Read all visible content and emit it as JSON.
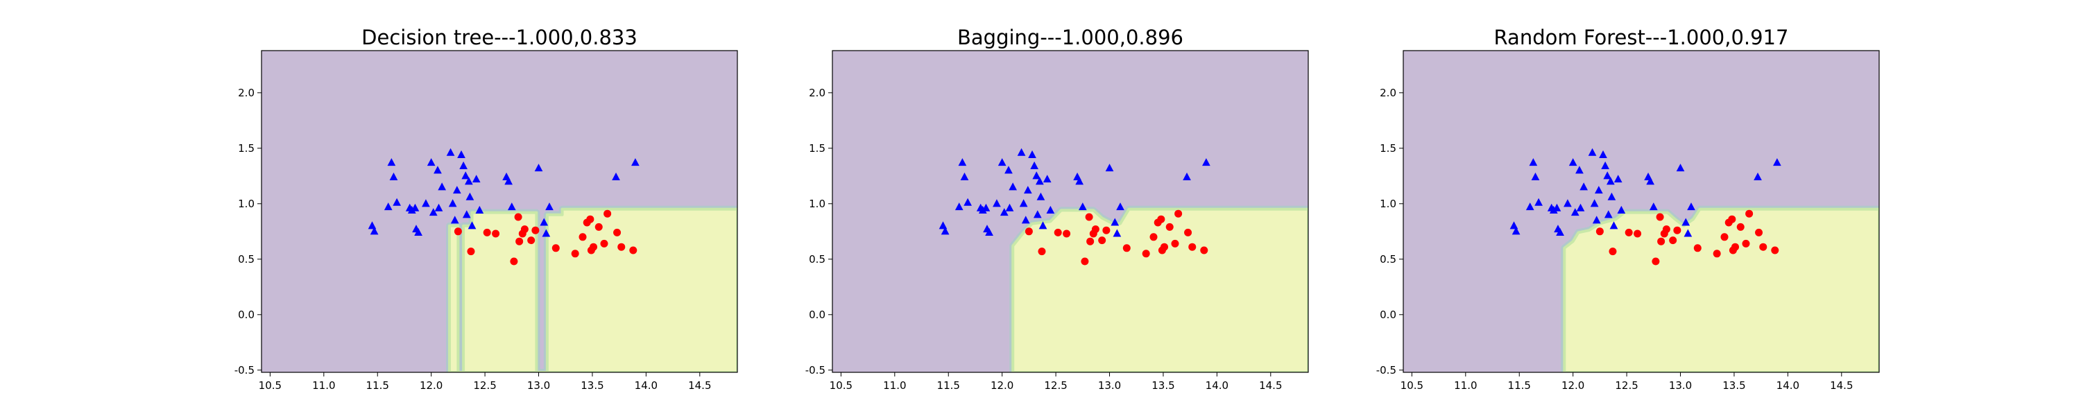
{
  "chart_data": [
    {
      "type": "scatter",
      "title": "Decision tree---1.000,0.833",
      "xlim": [
        10.42,
        14.85
      ],
      "ylim": [
        -0.52,
        2.38
      ],
      "xticks": [
        "10.5",
        "11.0",
        "11.5",
        "12.0",
        "12.5",
        "13.0",
        "13.5",
        "14.0",
        "14.5"
      ],
      "yticks": [
        "-0.5",
        "0.0",
        "0.5",
        "1.0",
        "1.5",
        "2.0"
      ],
      "background_regions": {
        "class_0_color": "#c8bbd6",
        "class_1_color": "#eff5bc",
        "class_1_boundary": [
          [
            12.17,
            -0.52
          ],
          [
            12.17,
            0.8
          ],
          [
            12.25,
            0.8
          ],
          [
            12.25,
            -0.52
          ],
          [
            12.3,
            -0.52
          ],
          [
            12.3,
            0.8
          ],
          [
            12.38,
            0.8
          ],
          [
            12.38,
            0.92
          ],
          [
            12.98,
            0.92
          ],
          [
            12.98,
            -0.52
          ],
          [
            13.08,
            -0.52
          ],
          [
            13.08,
            0.9
          ],
          [
            13.22,
            0.9
          ],
          [
            13.22,
            0.95
          ],
          [
            14.85,
            0.95
          ],
          [
            14.85,
            -0.52
          ]
        ]
      },
      "series": [
        {
          "marker": "triangle",
          "color": "#0000ff",
          "x": [
            11.45,
            11.47,
            11.6,
            11.63,
            11.65,
            11.68,
            11.8,
            11.82,
            11.85,
            11.86,
            11.88,
            11.95,
            12.0,
            12.02,
            12.06,
            12.07,
            12.1,
            12.18,
            12.2,
            12.22,
            12.24,
            12.28,
            12.3,
            12.32,
            12.33,
            12.35,
            12.36,
            12.38,
            12.42,
            12.45,
            12.7,
            12.72,
            12.75,
            13.0,
            13.05,
            13.07,
            13.1,
            13.72,
            13.9
          ],
          "y": [
            0.8,
            0.75,
            0.97,
            1.37,
            1.24,
            1.01,
            0.96,
            0.94,
            0.96,
            0.77,
            0.74,
            1.0,
            1.37,
            0.92,
            1.3,
            0.96,
            1.15,
            1.46,
            1.0,
            0.85,
            1.12,
            1.44,
            1.34,
            1.25,
            0.9,
            1.2,
            1.06,
            0.8,
            1.22,
            0.94,
            1.24,
            1.2,
            0.97,
            1.32,
            0.83,
            0.73,
            0.97,
            1.24,
            1.37
          ]
        },
        {
          "marker": "circle",
          "color": "#ff0000",
          "x": [
            12.25,
            12.37,
            12.52,
            12.6,
            12.77,
            12.81,
            12.82,
            12.85,
            12.87,
            12.93,
            12.97,
            13.16,
            13.34,
            13.41,
            13.45,
            13.48,
            13.49,
            13.51,
            13.56,
            13.61,
            13.64,
            13.73,
            13.77,
            13.88
          ],
          "y": [
            0.75,
            0.57,
            0.74,
            0.73,
            0.48,
            0.88,
            0.66,
            0.73,
            0.77,
            0.67,
            0.76,
            0.6,
            0.55,
            0.7,
            0.83,
            0.86,
            0.58,
            0.61,
            0.79,
            0.64,
            0.91,
            0.74,
            0.61,
            0.58
          ]
        }
      ]
    },
    {
      "type": "scatter",
      "title": "Bagging---1.000,0.896",
      "xlim": [
        10.42,
        14.85
      ],
      "ylim": [
        -0.52,
        2.38
      ],
      "xticks": [
        "10.5",
        "11.0",
        "11.5",
        "12.0",
        "12.5",
        "13.0",
        "13.5",
        "14.0",
        "14.5"
      ],
      "yticks": [
        "-0.5",
        "0.0",
        "0.5",
        "1.0",
        "1.5",
        "2.0"
      ],
      "background_regions": {
        "class_0_color": "#c8bbd6",
        "class_1_color": "#eff5bc",
        "class_1_boundary": [
          [
            12.1,
            -0.52
          ],
          [
            12.1,
            0.62
          ],
          [
            12.2,
            0.74
          ],
          [
            12.28,
            0.82
          ],
          [
            12.45,
            0.84
          ],
          [
            12.55,
            0.94
          ],
          [
            12.85,
            0.94
          ],
          [
            12.93,
            0.87
          ],
          [
            13.03,
            0.82
          ],
          [
            13.1,
            0.82
          ],
          [
            13.18,
            0.95
          ],
          [
            14.85,
            0.95
          ],
          [
            14.85,
            -0.52
          ]
        ]
      },
      "series": [
        {
          "marker": "triangle",
          "color": "#0000ff",
          "x": [
            11.45,
            11.47,
            11.6,
            11.63,
            11.65,
            11.68,
            11.8,
            11.82,
            11.85,
            11.86,
            11.88,
            11.95,
            12.0,
            12.02,
            12.06,
            12.07,
            12.1,
            12.18,
            12.2,
            12.22,
            12.24,
            12.28,
            12.3,
            12.32,
            12.33,
            12.35,
            12.36,
            12.38,
            12.42,
            12.45,
            12.7,
            12.72,
            12.75,
            13.0,
            13.05,
            13.07,
            13.1,
            13.72,
            13.9
          ],
          "y": [
            0.8,
            0.75,
            0.97,
            1.37,
            1.24,
            1.01,
            0.96,
            0.94,
            0.96,
            0.77,
            0.74,
            1.0,
            1.37,
            0.92,
            1.3,
            0.96,
            1.15,
            1.46,
            1.0,
            0.85,
            1.12,
            1.44,
            1.34,
            1.25,
            0.9,
            1.2,
            1.06,
            0.8,
            1.22,
            0.94,
            1.24,
            1.2,
            0.97,
            1.32,
            0.83,
            0.73,
            0.97,
            1.24,
            1.37
          ]
        },
        {
          "marker": "circle",
          "color": "#ff0000",
          "x": [
            12.25,
            12.37,
            12.52,
            12.6,
            12.77,
            12.81,
            12.82,
            12.85,
            12.87,
            12.93,
            12.97,
            13.16,
            13.34,
            13.41,
            13.45,
            13.48,
            13.49,
            13.51,
            13.56,
            13.61,
            13.64,
            13.73,
            13.77,
            13.88
          ],
          "y": [
            0.75,
            0.57,
            0.74,
            0.73,
            0.48,
            0.88,
            0.66,
            0.73,
            0.77,
            0.67,
            0.76,
            0.6,
            0.55,
            0.7,
            0.83,
            0.86,
            0.58,
            0.61,
            0.79,
            0.64,
            0.91,
            0.74,
            0.61,
            0.58
          ]
        }
      ]
    },
    {
      "type": "scatter",
      "title": "Random Forest---1.000,0.917",
      "xlim": [
        10.42,
        14.85
      ],
      "ylim": [
        -0.52,
        2.38
      ],
      "xticks": [
        "10.5",
        "11.0",
        "11.5",
        "12.0",
        "12.5",
        "13.0",
        "13.5",
        "14.0",
        "14.5"
      ],
      "yticks": [
        "-0.5",
        "0.0",
        "0.5",
        "1.0",
        "1.5",
        "2.0"
      ],
      "background_regions": {
        "class_0_color": "#c8bbd6",
        "class_1_color": "#eff5bc",
        "class_1_boundary": [
          [
            11.92,
            -0.52
          ],
          [
            11.92,
            0.6
          ],
          [
            12.0,
            0.66
          ],
          [
            12.05,
            0.74
          ],
          [
            12.15,
            0.76
          ],
          [
            12.25,
            0.82
          ],
          [
            12.4,
            0.86
          ],
          [
            12.48,
            0.92
          ],
          [
            12.88,
            0.92
          ],
          [
            12.95,
            0.86
          ],
          [
            13.03,
            0.8
          ],
          [
            13.12,
            0.86
          ],
          [
            13.18,
            0.95
          ],
          [
            14.85,
            0.95
          ],
          [
            14.85,
            -0.52
          ]
        ]
      },
      "series": [
        {
          "marker": "triangle",
          "color": "#0000ff",
          "x": [
            11.45,
            11.47,
            11.6,
            11.63,
            11.65,
            11.68,
            11.8,
            11.82,
            11.85,
            11.86,
            11.88,
            11.95,
            12.0,
            12.02,
            12.06,
            12.07,
            12.1,
            12.18,
            12.2,
            12.22,
            12.24,
            12.28,
            12.3,
            12.32,
            12.33,
            12.35,
            12.36,
            12.38,
            12.42,
            12.45,
            12.7,
            12.72,
            12.75,
            13.0,
            13.05,
            13.07,
            13.1,
            13.72,
            13.9
          ],
          "y": [
            0.8,
            0.75,
            0.97,
            1.37,
            1.24,
            1.01,
            0.96,
            0.94,
            0.96,
            0.77,
            0.74,
            1.0,
            1.37,
            0.92,
            1.3,
            0.96,
            1.15,
            1.46,
            1.0,
            0.85,
            1.12,
            1.44,
            1.34,
            1.25,
            0.9,
            1.2,
            1.06,
            0.8,
            1.22,
            0.94,
            1.24,
            1.2,
            0.97,
            1.32,
            0.83,
            0.73,
            0.97,
            1.24,
            1.37
          ]
        },
        {
          "marker": "circle",
          "color": "#ff0000",
          "x": [
            12.25,
            12.37,
            12.52,
            12.6,
            12.77,
            12.81,
            12.82,
            12.85,
            12.87,
            12.93,
            12.97,
            13.16,
            13.34,
            13.41,
            13.45,
            13.48,
            13.49,
            13.51,
            13.56,
            13.61,
            13.64,
            13.73,
            13.77,
            13.88
          ],
          "y": [
            0.75,
            0.57,
            0.74,
            0.73,
            0.48,
            0.88,
            0.66,
            0.73,
            0.77,
            0.67,
            0.76,
            0.6,
            0.55,
            0.7,
            0.83,
            0.86,
            0.58,
            0.61,
            0.79,
            0.64,
            0.91,
            0.74,
            0.61,
            0.58
          ]
        }
      ]
    }
  ]
}
